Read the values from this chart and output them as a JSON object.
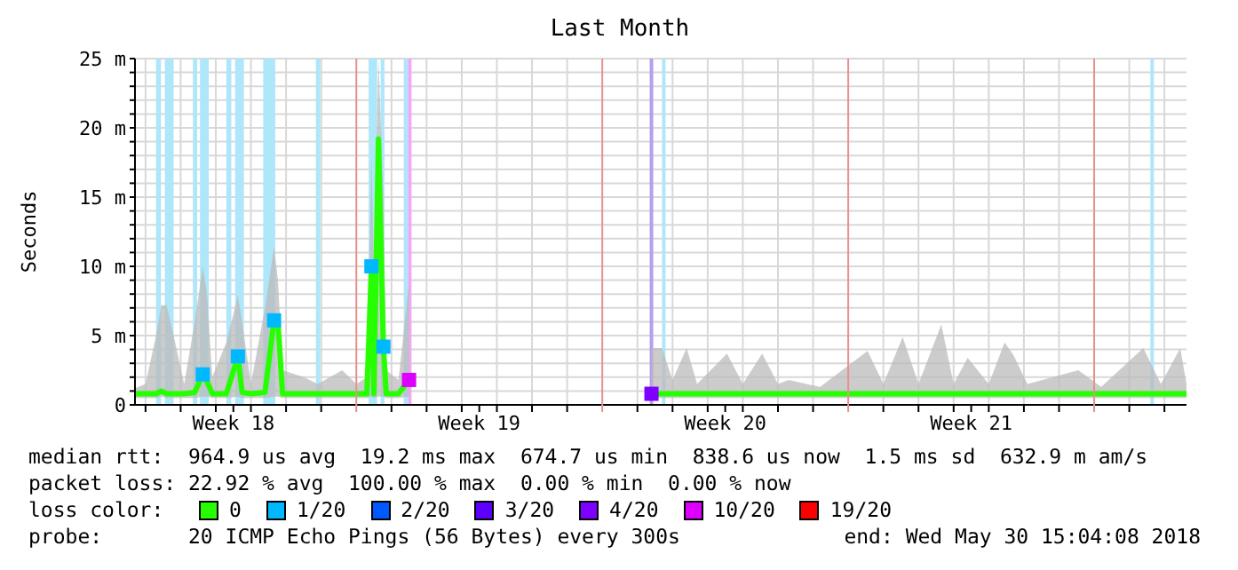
{
  "chart_data": {
    "type": "line",
    "title": "Last Month",
    "ylabel": "Seconds",
    "xlim": [
      "2018-04-30T16:48",
      "2018-05-30T15:04"
    ],
    "xticks": [
      {
        "value": "2018-05-01T00:00",
        "label": null
      },
      {
        "value": "2018-05-02T00:00",
        "label": null
      },
      {
        "value": "2018-05-03T00:00",
        "label": null
      },
      {
        "value": "2018-05-04T00:00",
        "label": null
      },
      {
        "value": "2018-05-05T00:00",
        "label": null
      },
      {
        "value": "2018-05-06T00:00",
        "label": null
      },
      {
        "value": "2018-05-08T00:00",
        "label": null
      },
      {
        "value": "2018-05-09T00:00",
        "label": null
      },
      {
        "value": "2018-05-10T00:00",
        "label": null
      },
      {
        "value": "2018-05-11T00:00",
        "label": null
      },
      {
        "value": "2018-05-12T00:00",
        "label": null
      },
      {
        "value": "2018-05-13T00:00",
        "label": null
      },
      {
        "value": "2018-05-15T00:00",
        "label": null
      },
      {
        "value": "2018-05-16T00:00",
        "label": null
      },
      {
        "value": "2018-05-17T00:00",
        "label": null
      },
      {
        "value": "2018-05-18T00:00",
        "label": null
      },
      {
        "value": "2018-05-19T00:00",
        "label": null
      },
      {
        "value": "2018-05-20T00:00",
        "label": null
      },
      {
        "value": "2018-05-22T00:00",
        "label": null
      },
      {
        "value": "2018-05-23T00:00",
        "label": null
      },
      {
        "value": "2018-05-24T00:00",
        "label": null
      },
      {
        "value": "2018-05-25T00:00",
        "label": null
      },
      {
        "value": "2018-05-26T00:00",
        "label": null
      },
      {
        "value": "2018-05-27T00:00",
        "label": null
      },
      {
        "value": "2018-05-29T00:00",
        "label": null
      },
      {
        "value": "2018-05-30T00:00",
        "label": null
      },
      {
        "value": "2018-05-03T12:00",
        "label": "Week 18"
      },
      {
        "value": "2018-05-10T12:00",
        "label": "Week 19"
      },
      {
        "value": "2018-05-17T12:00",
        "label": "Week 20"
      },
      {
        "value": "2018-05-24T12:00",
        "label": "Week 21"
      }
    ],
    "ylim": [
      0,
      25
    ],
    "yticks": [
      0,
      {
        "value": 1,
        "label": null
      },
      {
        "value": 2,
        "label": null
      },
      {
        "value": 3,
        "label": null
      },
      {
        "value": 4,
        "label": null
      },
      {
        "value": 5,
        "label": "5 m"
      },
      {
        "value": 6,
        "label": null
      },
      {
        "value": 7,
        "label": null
      },
      {
        "value": 8,
        "label": null
      },
      {
        "value": 9,
        "label": null
      },
      {
        "value": 10,
        "label": "10 m"
      },
      {
        "value": 11,
        "label": null
      },
      {
        "value": 12,
        "label": null
      },
      {
        "value": 13,
        "label": null
      },
      {
        "value": 14,
        "label": null
      },
      {
        "value": 15,
        "label": "15 m"
      },
      {
        "value": 16,
        "label": null
      },
      {
        "value": 17,
        "label": null
      },
      {
        "value": 18,
        "label": null
      },
      {
        "value": 19,
        "label": null
      },
      {
        "value": 20,
        "label": "20 m"
      },
      {
        "value": 21,
        "label": null
      },
      {
        "value": 22,
        "label": null
      },
      {
        "value": 23,
        "label": null
      },
      {
        "value": 24,
        "label": null
      },
      {
        "value": 25,
        "label": "25 m"
      }
    ],
    "grid": true,
    "legend": "bottom",
    "legend_title": "loss color:",
    "marker": "square",
    "series": [
      {
        "name": "0",
        "color": "#26ff00",
        "marker": "none",
        "x": [
          "2018-04-30T16:48",
          "2018-05-01T00:00",
          "2018-05-01T07:12",
          "2018-05-01T10:48",
          "2018-05-01T14:24",
          "2018-05-01T19:12",
          "2018-05-02T02:24",
          "2018-05-02T09:36",
          "2018-05-02T15:06",
          "2018-05-02T18:00",
          "2018-05-02T21:36",
          "2018-05-03T07:12",
          "2018-05-03T15:06",
          "2018-05-03T18:00",
          "2018-05-04T00:00",
          "2018-05-04T09:36",
          "2018-05-04T15:48",
          "2018-05-04T18:30",
          "2018-05-04T21:36",
          "2018-05-05T12:00",
          "2018-05-05T21:36",
          "2018-05-06T14:24",
          "2018-05-07T00:00",
          "2018-05-07T07:12",
          "2018-05-07T10:18",
          "2018-05-07T12:00",
          "2018-05-07T15:06",
          "2018-05-07T18:30",
          "2018-05-07T20:24",
          "2018-05-08T04:48",
          "2018-05-08T12:00",
          "2018-05-08T16:48",
          "2018-05-15T09:36",
          "2018-05-15T16:48",
          "2018-05-16T00:00",
          "2018-05-16T09:36",
          "2018-05-16T16:48",
          "2018-05-17T13:12",
          "2018-05-18T00:00",
          "2018-05-18T13:12",
          "2018-05-19T00:00",
          "2018-05-19T07:12",
          "2018-05-20T04:48",
          "2018-05-21T13:12",
          "2018-05-22T00:00",
          "2018-05-22T13:12",
          "2018-05-23T00:00",
          "2018-05-23T15:36",
          "2018-05-24T00:00",
          "2018-05-24T09:36",
          "2018-05-25T00:00",
          "2018-05-25T10:48",
          "2018-05-25T16:48",
          "2018-05-26T02:24",
          "2018-05-27T13:12",
          "2018-05-28T04:48",
          "2018-05-29T09:36",
          "2018-05-29T21:36",
          "2018-05-30T10:48",
          "2018-05-30T15:04"
        ],
        "values": [
          0.8,
          0.8,
          0.8,
          1,
          0.8,
          0.8,
          0.8,
          0.9,
          2.2,
          1.7,
          0.8,
          0.8,
          3.5,
          0.9,
          0.8,
          0.9,
          6.1,
          5.9,
          0.8,
          0.8,
          0.8,
          0.8,
          0.8,
          0.8,
          10,
          0.8,
          19.2,
          4.2,
          0.8,
          0.8,
          1.8,
          null,
          0.8,
          0.8,
          0.8,
          0.8,
          0.8,
          0.8,
          0.8,
          0.8,
          0.8,
          0.8,
          0.8,
          0.8,
          0.8,
          0.8,
          0.8,
          0.8,
          0.8,
          0.8,
          0.8,
          0.8,
          0.8,
          0.8,
          0.8,
          0.8,
          0.8,
          0.8,
          0.8,
          0.8
        ],
        "lower": [
          0.5,
          0.5,
          0.5,
          0.6,
          0.5,
          0.5,
          0.5,
          0.5,
          0.6,
          0.6,
          0.5,
          0.5,
          0.6,
          0.5,
          0.5,
          0.5,
          0.6,
          0.6,
          0.5,
          0.5,
          0.5,
          0.5,
          0.5,
          0.5,
          0.6,
          0.5,
          0.6,
          0.6,
          0.5,
          0.5,
          0.6,
          null,
          0.5,
          0.5,
          0.5,
          0.5,
          0.5,
          0.5,
          0.5,
          0.5,
          0.5,
          0.5,
          0.5,
          0.5,
          0.5,
          0.5,
          0.5,
          0.5,
          0.5,
          0.5,
          0.5,
          0.5,
          0.5,
          0.5,
          0.5,
          0.5,
          0.5,
          0.5,
          0.5,
          0.5
        ],
        "upper": [
          1.2,
          1.5,
          5,
          7.2,
          7.2,
          5,
          1.5,
          6,
          10,
          8,
          2,
          4.5,
          7.9,
          6,
          1.5,
          7,
          11.4,
          9,
          2.5,
          2,
          1.5,
          2.5,
          1.5,
          2,
          17.9,
          10,
          25,
          15,
          2.5,
          1.8,
          8.9,
          null,
          4.1,
          4.1,
          1.8,
          4.1,
          1.5,
          3.7,
          1.5,
          3.7,
          1.5,
          1.8,
          1.3,
          3.9,
          1.5,
          4.9,
          1.5,
          5.8,
          1.5,
          3.4,
          1.5,
          4.5,
          3.6,
          1.5,
          2.5,
          1.3,
          4.1,
          1.5,
          4.1,
          1.5
        ]
      },
      {
        "name": "1/20",
        "type": "scatter",
        "color": "#00b8ff",
        "x": [
          "2018-05-02T15:06",
          "2018-05-03T15:06",
          "2018-05-04T15:48",
          "2018-05-07T10:18",
          "2018-05-07T18:30"
        ],
        "values": [
          2.2,
          3.5,
          6.1,
          10,
          4.2
        ]
      },
      {
        "name": "2/20",
        "type": "scatter",
        "color": "#0059ff"
      },
      {
        "name": "3/20",
        "type": "scatter",
        "color": "#5e00ff"
      },
      {
        "name": "4/20",
        "type": "scatter",
        "color": "#7e00ff",
        "x": [
          "2018-05-15T09:36"
        ],
        "values": [
          0.8
        ]
      },
      {
        "name": "10/20",
        "type": "scatter",
        "color": "#dd00ff",
        "x": [
          "2018-05-08T12:00"
        ],
        "values": [
          1.8
        ]
      },
      {
        "name": "19/20",
        "type": "scatter",
        "color": "#ff0000"
      }
    ],
    "bands": [
      {
        "axis": "x",
        "from": "2018-05-01T07:12",
        "to": "2018-05-01T10:34",
        "color": "#aee6fa"
      },
      {
        "axis": "x",
        "from": "2018-05-01T13:12",
        "to": "2018-05-01T19:12",
        "color": "#aee6fa"
      },
      {
        "axis": "x",
        "from": "2018-05-02T08:24",
        "to": "2018-05-02T11:18",
        "color": "#aee6fa"
      },
      {
        "axis": "x",
        "from": "2018-05-02T13:12",
        "to": "2018-05-02T19:12",
        "color": "#aee6fa"
      },
      {
        "axis": "x",
        "from": "2018-05-03T07:12",
        "to": "2018-05-03T10:36",
        "color": "#aee6fa"
      },
      {
        "axis": "x",
        "from": "2018-05-03T13:12",
        "to": "2018-05-03T19:12",
        "color": "#aee6fa"
      },
      {
        "axis": "x",
        "from": "2018-05-04T08:24",
        "to": "2018-05-04T16:36",
        "color": "#aee6fa"
      },
      {
        "axis": "x",
        "from": "2018-05-05T20:24",
        "to": "2018-05-05T23:18",
        "color": "#aee6fa"
      },
      {
        "axis": "x",
        "from": "2018-05-07T08:24",
        "to": "2018-05-07T14:12",
        "color": "#aee6fa"
      },
      {
        "axis": "x",
        "from": "2018-05-07T16:36",
        "to": "2018-05-07T19:12",
        "color": "#aee6fa"
      },
      {
        "axis": "x",
        "from": "2018-05-08T08:24",
        "to": "2018-05-08T11:18",
        "color": "#aee6fa"
      },
      {
        "axis": "x",
        "from": "2018-05-08T11:18",
        "to": "2018-05-08T13:42",
        "color": "#f0a8f8"
      },
      {
        "axis": "x",
        "from": "2018-05-15T08:24",
        "to": "2018-05-15T10:48",
        "color": "#b89cf0"
      },
      {
        "axis": "x",
        "from": "2018-05-15T16:48",
        "to": "2018-05-15T19:12",
        "color": "#aee6fa"
      },
      {
        "axis": "x",
        "from": "2018-05-29T14:24",
        "to": "2018-05-29T16:48",
        "color": "#aee6fa"
      }
    ],
    "ref_lines": [
      {
        "axis": "x",
        "value": "2018-05-07T00:00",
        "color": "#e89090"
      },
      {
        "axis": "x",
        "value": "2018-05-14T00:00",
        "color": "#e89090"
      },
      {
        "axis": "x",
        "value": "2018-05-21T00:00",
        "color": "#e89090"
      },
      {
        "axis": "x",
        "value": "2018-05-28T00:00",
        "color": "#e89090"
      }
    ],
    "annotations": [
      "median rtt:  964.9 us avg  19.2 ms max  674.7 us min  838.6 us now  1.5 ms sd  632.9 m am/s",
      "packet loss: 22.92 % avg  100.00 % max  0.00 % min  0.00 % now",
      "probe:       20 ICMP Echo Pings (56 Bytes) every 300s",
      "end: Wed May 30 15:04:08 2018"
    ]
  }
}
